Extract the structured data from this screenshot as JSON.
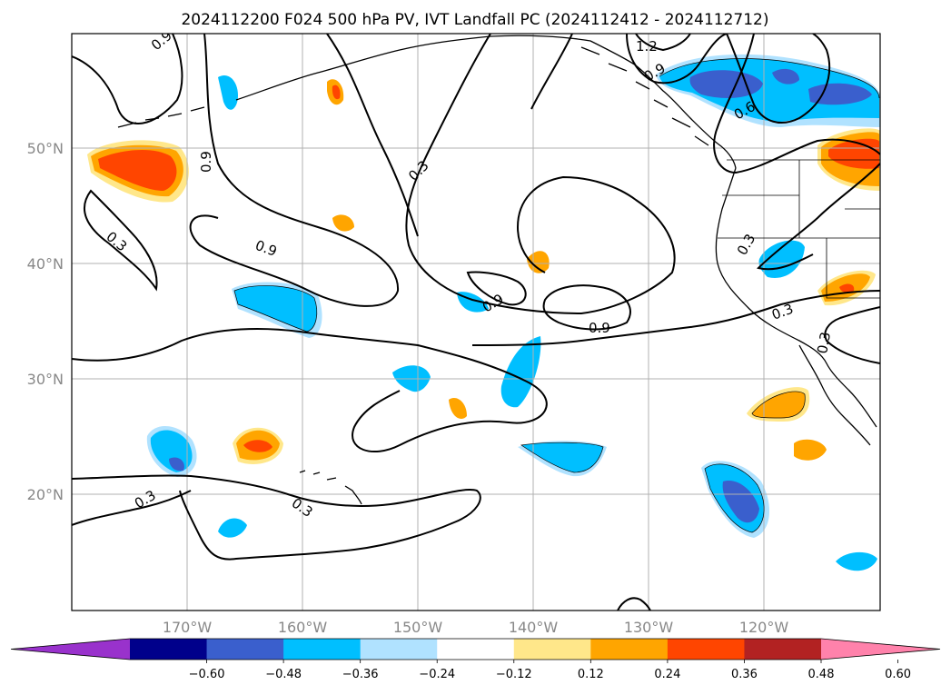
{
  "title": "2024112200 F024 500 hPa PV, IVT Landfall PC (2024112412 - 2024112712)",
  "map": {
    "lat_range": [
      10,
      60
    ],
    "lon_range": [
      -180,
      -110
    ],
    "lat_ticks": [
      "20°N",
      "30°N",
      "40°N",
      "50°N"
    ],
    "lon_ticks": [
      "170°W",
      "160°W",
      "150°W",
      "140°W",
      "130°W",
      "120°W"
    ],
    "gridlines": true,
    "coastlines": true
  },
  "colors": {
    "grid": "#b0b0b0",
    "contour": "#000000",
    "land_outline": "#000000"
  },
  "contour_labels": [
    {
      "text": "0.9",
      "id": "nw-09"
    },
    {
      "text": "0.9",
      "id": "west-09"
    },
    {
      "text": "0.3",
      "id": "west-03"
    },
    {
      "text": "0.3",
      "id": "mid-03"
    },
    {
      "text": "0.9",
      "id": "hi-09"
    },
    {
      "text": "0.9",
      "id": "center-09"
    },
    {
      "text": "0.9",
      "id": "east-09"
    },
    {
      "text": "1.2",
      "id": "ak-12"
    },
    {
      "text": "0.9",
      "id": "ak-09"
    },
    {
      "text": "0.6",
      "id": "bc-06"
    },
    {
      "text": "0.3",
      "id": "west-coast-03"
    },
    {
      "text": "0.3",
      "id": "east-03"
    },
    {
      "text": "0.3",
      "id": "baja-03"
    },
    {
      "text": "0.3",
      "id": "sw-03"
    },
    {
      "text": "0.3",
      "id": "south-03"
    }
  ],
  "colorbar": {
    "ticks": [
      "−0.60",
      "−0.48",
      "−0.36",
      "−0.24",
      "−0.12",
      "0.12",
      "0.24",
      "0.36",
      "0.48",
      "0.60"
    ],
    "levels": [
      -0.72,
      -0.6,
      -0.48,
      -0.36,
      -0.24,
      -0.12,
      0.12,
      0.24,
      0.36,
      0.48,
      0.6,
      0.72
    ],
    "colors": [
      "#9932cc",
      "#00008b",
      "#3a5fcd",
      "#00bfff",
      "#b0e2ff",
      "#ffffff",
      "#ffe78a",
      "#ffa500",
      "#ff4500",
      "#b22222",
      "#ff82ab"
    ],
    "extend": "both"
  }
}
